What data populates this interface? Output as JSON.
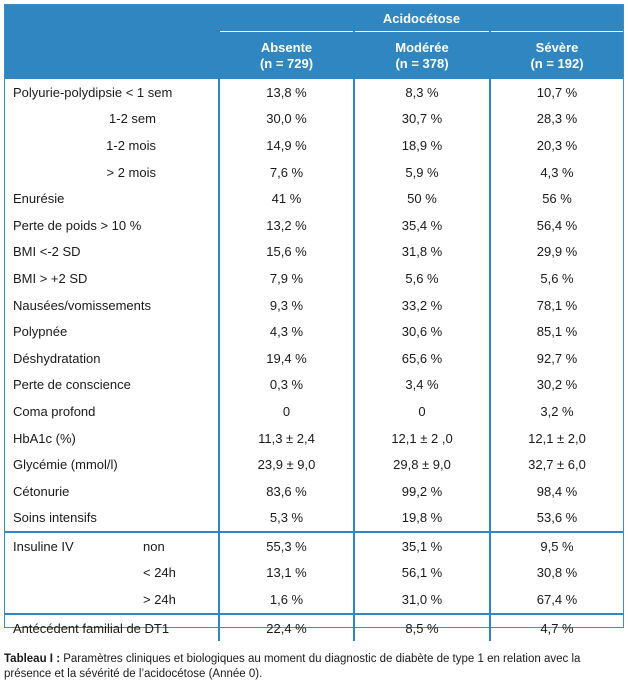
{
  "header": {
    "group_label": "Acidocétose",
    "columns": [
      {
        "name": "Absente",
        "n": "(n = 729)"
      },
      {
        "name": "Modérée",
        "n": "(n = 378)"
      },
      {
        "name": "Sévère",
        "n": "(n = 192)"
      }
    ]
  },
  "rows": [
    {
      "label": "Polyurie-polydipsie < 1 sem",
      "values": [
        "13,8 %",
        "8,3 %",
        "10,7 %"
      ]
    },
    {
      "label": "1-2 sem",
      "values": [
        "30,0 %",
        "30,7 %",
        "28,3 %"
      ]
    },
    {
      "label": "1-2 mois",
      "values": [
        "14,9 %",
        "18,9 %",
        "20,3 %"
      ]
    },
    {
      "label": "> 2 mois",
      "values": [
        "7,6 %",
        "5,9 %",
        "4,3 %"
      ]
    },
    {
      "label": "Enurésie",
      "values": [
        "41 %",
        "50 %",
        "56 %"
      ]
    },
    {
      "label": "Perte de poids > 10 %",
      "values": [
        "13,2 %",
        "35,4 %",
        "56,4 %"
      ]
    },
    {
      "label": "BMI <-2 SD",
      "values": [
        "15,6 %",
        "31,8 %",
        "29,9 %"
      ]
    },
    {
      "label": "BMI > +2 SD",
      "values": [
        "7,9 %",
        "5,6 %",
        "5,6 %"
      ]
    },
    {
      "label": "Nausées/vomissements",
      "values": [
        "9,3 %",
        "33,2 %",
        "78,1 %"
      ]
    },
    {
      "label": "Polypnée",
      "values": [
        "4,3 %",
        "30,6 %",
        "85,1 %"
      ]
    },
    {
      "label": "Déshydratation",
      "values": [
        "19,4 %",
        "65,6 %",
        "92,7 %"
      ]
    },
    {
      "label": "Perte de conscience",
      "values": [
        "0,3 %",
        "3,4 %",
        "30,2 %"
      ]
    },
    {
      "label": "Coma profond",
      "values": [
        "0",
        "0",
        "3,2 %"
      ]
    },
    {
      "label": "HbA1c (%)",
      "values": [
        "11,3 ± 2,4",
        "12,1 ± 2 ,0",
        "12,1 ± 2,0"
      ]
    },
    {
      "label": "Glycémie (mmol/l)",
      "values": [
        "23,9 ± 9,0",
        "29,8 ± 9,0",
        "32,7 ± 6,0"
      ]
    },
    {
      "label": "Cétonurie",
      "values": [
        "83,6 %",
        "99,2 %",
        "98,4 %"
      ]
    },
    {
      "label": "Soins intensifs",
      "values": [
        "5,3 %",
        "19,8 %",
        "53,6 %"
      ]
    }
  ],
  "insulin": {
    "label": "Insuline IV",
    "rows": [
      {
        "sub": "non",
        "values": [
          "55,3 %",
          "35,1 %",
          "9,5 %"
        ]
      },
      {
        "sub": "< 24h",
        "values": [
          "13,1 %",
          "56,1 %",
          "30,8 %"
        ]
      },
      {
        "sub": "> 24h",
        "values": [
          "1,6 %",
          "31,0 %",
          "67,4 %"
        ]
      }
    ]
  },
  "family": {
    "label": "Antécédent familial de DT1",
    "values": [
      "22,4 %",
      "8,5 %",
      "4,7 %"
    ]
  },
  "caption": {
    "bold": "Tableau I :",
    "text": " Paramètres cliniques et biologiques au moment du diagnostic de diabète de type 1 en relation avec la présence et la sévérité de l’acidocétose (Année 0)."
  }
}
